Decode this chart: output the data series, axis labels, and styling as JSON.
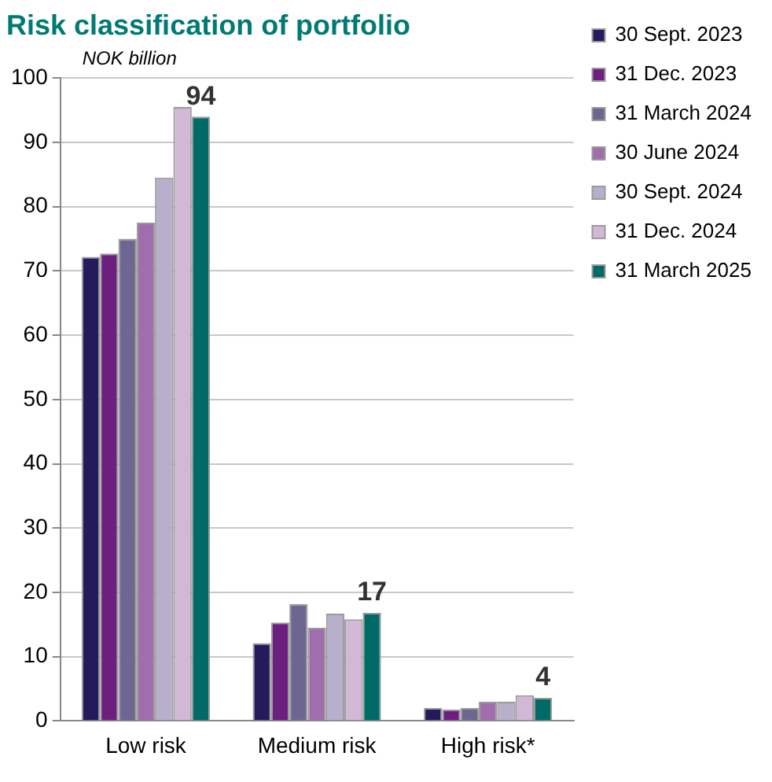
{
  "chart_data": {
    "type": "bar",
    "title": "Risk classification of portfolio",
    "ylabel": "NOK billion",
    "categories": [
      "Low risk",
      "Medium risk",
      "High risk*"
    ],
    "series": [
      {
        "name": "30 Sept. 2023",
        "color": "#241a5c",
        "values": [
          72.2,
          12.1,
          2.0
        ]
      },
      {
        "name": "31 Dec. 2023",
        "color": "#6d1f80",
        "values": [
          72.7,
          15.3,
          1.8
        ]
      },
      {
        "name": "31 March 2024",
        "color": "#6d6690",
        "values": [
          75.0,
          18.2,
          2.0
        ]
      },
      {
        "name": "30 June 2024",
        "color": "#a06ead",
        "values": [
          77.5,
          14.5,
          3.0
        ]
      },
      {
        "name": "30 Sept. 2024",
        "color": "#b7afcb",
        "values": [
          84.5,
          16.7,
          3.0
        ]
      },
      {
        "name": "31 Dec. 2024",
        "color": "#d2b8d6",
        "values": [
          95.5,
          15.8,
          4.0
        ]
      },
      {
        "name": "31 March 2025",
        "color": "#006b66",
        "values": [
          94,
          16.8,
          3.6
        ],
        "value_labels": [
          "94",
          "17",
          "4"
        ]
      }
    ],
    "ylim": [
      0,
      100
    ],
    "yticks": [
      0,
      10,
      20,
      30,
      40,
      50,
      60,
      70,
      80,
      90,
      100
    ],
    "grid": "y",
    "legend": "right"
  }
}
